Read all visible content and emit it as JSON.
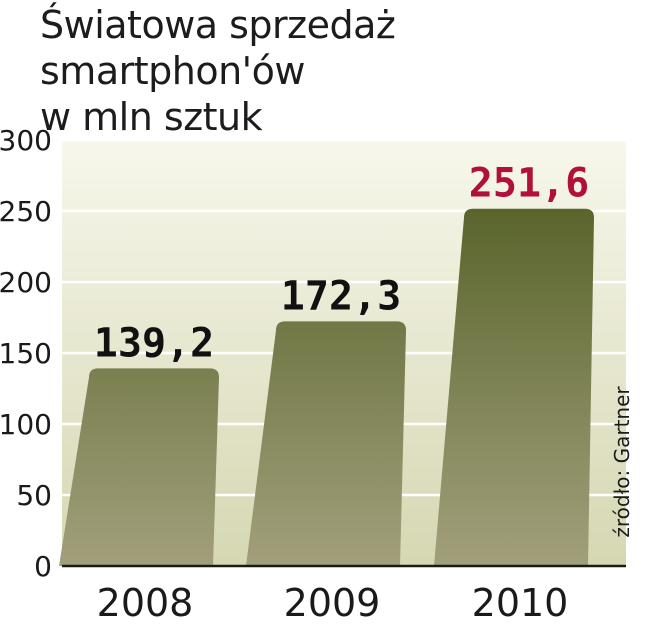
{
  "title_line1": "Światowa sprzedaż smartphon'ów",
  "title_line2": "w mln sztuk",
  "source": "źródło: Gartner",
  "colors": {
    "bar_top": "#58632a",
    "bar_bottom": "#a2a07c",
    "plot_bg_top": "#f7f7ec",
    "plot_bg_bottom": "#d6d7b2",
    "gridline": "#ffffff",
    "axis_text": "#1a1a1a",
    "value_label": "#111111",
    "highlight_label": "#b0103a"
  },
  "chart_data": {
    "type": "bar",
    "categories": [
      "2008",
      "2009",
      "2010"
    ],
    "values": [
      139.2,
      172.3,
      251.6
    ],
    "value_labels": [
      "139,2",
      "172,3",
      "251,6"
    ],
    "highlight_index": 2,
    "ylim": [
      0,
      300
    ],
    "yticks": [
      0,
      50,
      100,
      150,
      200,
      250,
      300
    ],
    "grid": true,
    "title": "Światowa sprzedaż smartphon'ów w mln sztuk",
    "xlabel": "",
    "ylabel": ""
  }
}
